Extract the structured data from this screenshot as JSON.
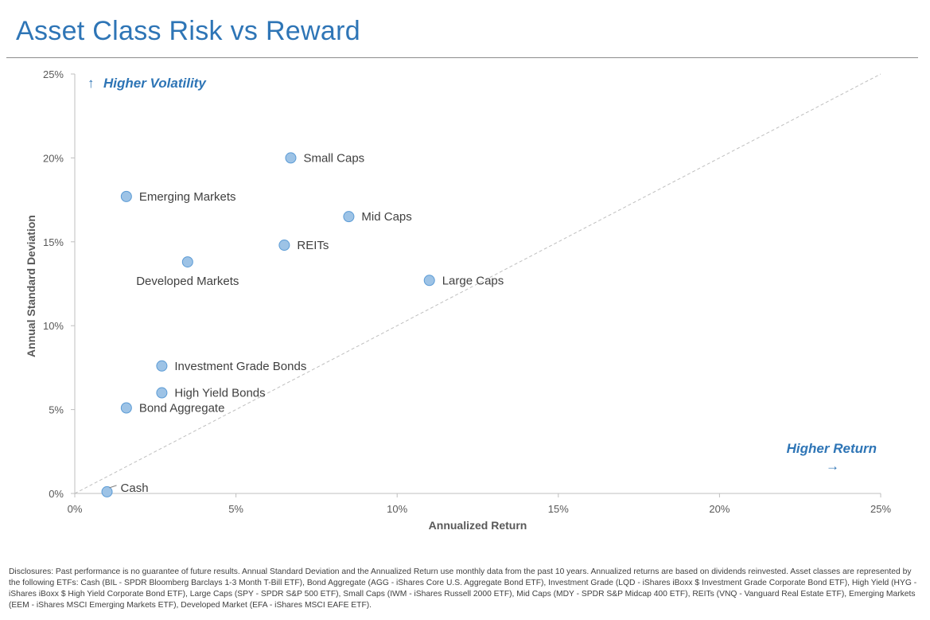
{
  "header": {
    "title": "Asset Class Risk vs Reward"
  },
  "chart_data": {
    "type": "scatter",
    "xlabel": "Annualized Return",
    "ylabel": "Annual Standard Deviation",
    "xlim": [
      0,
      25
    ],
    "ylim": [
      0,
      25
    ],
    "x_ticks": [
      "0%",
      "5%",
      "10%",
      "15%",
      "20%",
      "25%"
    ],
    "y_ticks": [
      "0%",
      "5%",
      "10%",
      "15%",
      "20%",
      "25%"
    ],
    "tick_values": [
      0,
      5,
      10,
      15,
      20,
      25
    ],
    "reference_line": {
      "from": [
        0,
        0
      ],
      "to": [
        25,
        25
      ],
      "style": "dashed"
    },
    "points": [
      {
        "name": "Small Caps",
        "x": 6.7,
        "y": 20.0,
        "label_pos": "right"
      },
      {
        "name": "Emerging Markets",
        "x": 1.6,
        "y": 17.7,
        "label_pos": "right"
      },
      {
        "name": "Mid Caps",
        "x": 8.5,
        "y": 16.5,
        "label_pos": "right"
      },
      {
        "name": "REITs",
        "x": 6.5,
        "y": 14.8,
        "label_pos": "right"
      },
      {
        "name": "Developed Markets",
        "x": 3.5,
        "y": 13.8,
        "label_pos": "below"
      },
      {
        "name": "Large Caps",
        "x": 11.0,
        "y": 12.7,
        "label_pos": "right"
      },
      {
        "name": "Investment Grade Bonds",
        "x": 2.7,
        "y": 7.6,
        "label_pos": "right"
      },
      {
        "name": "High Yield Bonds",
        "x": 2.7,
        "y": 6.0,
        "label_pos": "right"
      },
      {
        "name": "Bond Aggregate",
        "x": 1.6,
        "y": 5.1,
        "label_pos": "right"
      },
      {
        "name": "Cash",
        "x": 1.0,
        "y": 0.1,
        "label_pos": "leader"
      }
    ],
    "annotations": {
      "higher_volatility": "Higher Volatility",
      "higher_volatility_arrow": "↑",
      "higher_return": "Higher Return",
      "higher_return_arrow": "→"
    },
    "colors": {
      "marker_fill": "#9dc3e6",
      "marker_stroke": "#5b9bd5",
      "accent": "#2e75b6",
      "axis": "#bfbfbf",
      "reference_line": "#bfbfbf"
    }
  },
  "footer": {
    "disclosure": "Disclosures: Past performance is no guarantee of future results. Annual Standard Deviation and the Annualized Return use monthly data from the past 10 years. Annualized returns are based on dividends reinvested. Asset classes are represented by the following ETFs: Cash (BIL - SPDR Bloomberg Barclays 1-3 Month T-Bill ETF), Bond Aggregate (AGG - iShares Core U.S. Aggregate Bond ETF), Investment Grade (LQD - iShares iBoxx $ Investment Grade Corporate Bond ETF), High Yield (HYG - iShares iBoxx $ High Yield Corporate Bond ETF), Large Caps (SPY - SPDR S&P 500 ETF), Small Caps (IWM - iShares Russell 2000 ETF), Mid Caps (MDY - SPDR S&P Midcap 400 ETF), REITs (VNQ - Vanguard Real Estate ETF), Emerging Markets (EEM - iShares MSCI Emerging Markets ETF), Developed Market (EFA - iShares MSCI EAFE ETF)."
  }
}
